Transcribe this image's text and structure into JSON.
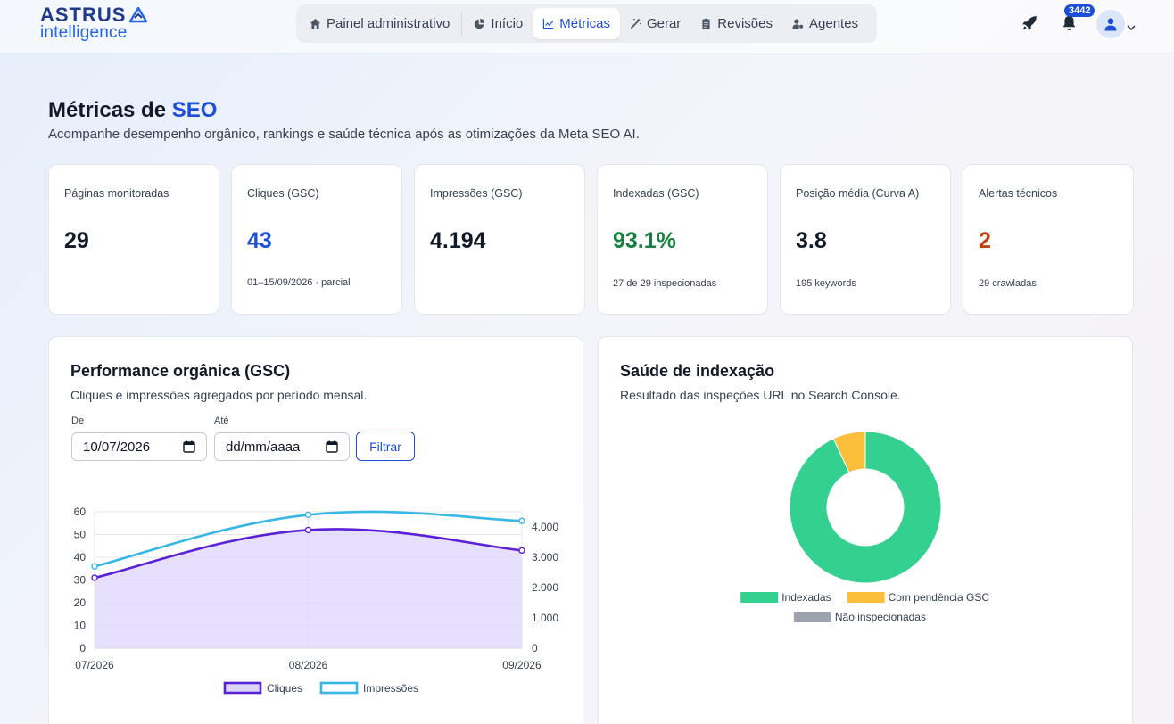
{
  "brand": {
    "name": "ASTRUS",
    "tagline": "intelligence"
  },
  "nav": {
    "items": [
      {
        "label": "Painel administrativo",
        "icon": "home-icon"
      },
      {
        "label": "Início",
        "icon": "pie-icon"
      },
      {
        "label": "Métricas",
        "icon": "line-chart-icon",
        "active": true
      },
      {
        "label": "Gerar",
        "icon": "magic-wand-icon"
      },
      {
        "label": "Revisões",
        "icon": "clipboard-icon"
      },
      {
        "label": "Agentes",
        "icon": "user-gear-icon"
      }
    ]
  },
  "header_actions": {
    "notifications_count": "3442"
  },
  "page": {
    "title_prefix": "Métricas de ",
    "title_highlight": "SEO",
    "subtitle": "Acompanhe desempenho orgânico, rankings e saúde técnica após as otimizações da Meta SEO AI."
  },
  "kpis": [
    {
      "label": "Páginas monitoradas",
      "value": "29",
      "note": "",
      "color": "#111827"
    },
    {
      "label": "Cliques (GSC)",
      "value": "43",
      "note": "01–15/09/2026 · parcial",
      "color": "#1d4ed8"
    },
    {
      "label": "Impressões (GSC)",
      "value": "4.194",
      "note": "",
      "color": "#111827"
    },
    {
      "label": "Indexadas (GSC)",
      "value": "93.1%",
      "note": "27 de 29 inspecionadas",
      "color": "#15803d"
    },
    {
      "label": "Posição média (Curva A)",
      "value": "3.8",
      "note": "195 keywords",
      "color": "#111827"
    },
    {
      "label": "Alertas técnicos",
      "value": "2",
      "note": "29 crawladas",
      "color": "#c2410c"
    }
  ],
  "performance": {
    "title": "Performance orgânica (GSC)",
    "subtitle": "Cliques e impressões agregados por período mensal.",
    "from_label": "De",
    "from_value": "10/07/2026",
    "to_label": "Até",
    "to_value": "dd/mm/aaaa",
    "filter_label": "Filtrar"
  },
  "indexing": {
    "title": "Saúde de indexação",
    "subtitle": "Resultado das inspeções URL no Search Console."
  },
  "chart_data": [
    {
      "type": "line",
      "x": [
        "07/2026",
        "08/2026",
        "09/2026"
      ],
      "series": [
        {
          "name": "Cliques",
          "values": [
            31,
            52,
            43
          ],
          "axis": "left",
          "color": "#5b21d6",
          "fill": true
        },
        {
          "name": "Impressões",
          "values": [
            2700,
            4400,
            4200
          ],
          "axis": "right",
          "color": "#38b6e6"
        }
      ],
      "ylim_left": [
        0,
        60
      ],
      "yticks_left": [
        "0",
        "10",
        "20",
        "30",
        "40",
        "50",
        "60"
      ],
      "ylim_right": [
        0,
        4000
      ],
      "yticks_right": [
        "0",
        "1.000",
        "2.000",
        "3.000",
        "4.000"
      ],
      "legend": "bottom",
      "grid": true
    },
    {
      "type": "pie",
      "donut": true,
      "labels": [
        "Indexadas",
        "Com pendência GSC",
        "Não inspecionadas"
      ],
      "values": [
        27,
        2,
        0
      ],
      "colors": [
        "#34d08f",
        "#fbbf3c",
        "#9ca3af"
      ],
      "legend": "bottom"
    }
  ]
}
